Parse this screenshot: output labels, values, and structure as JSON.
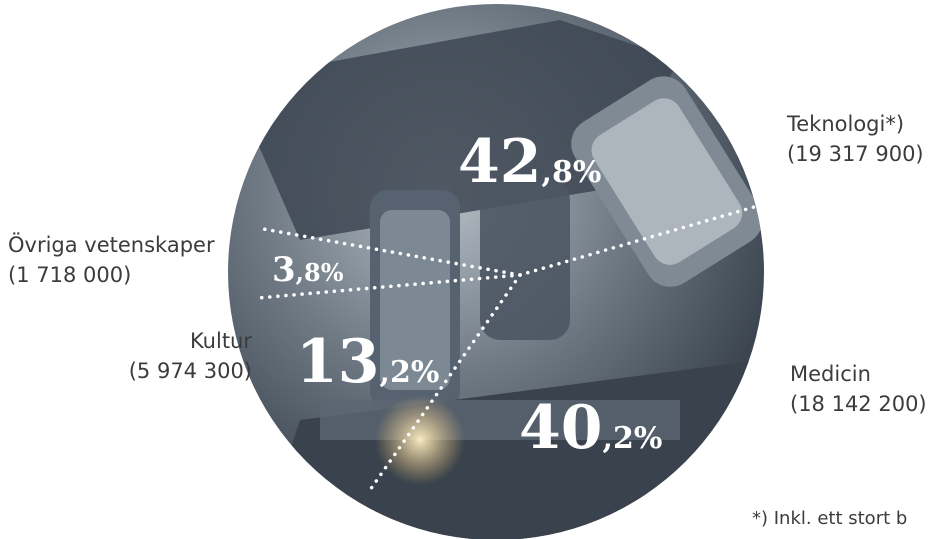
{
  "chart_data": {
    "type": "pie",
    "slices": [
      {
        "name": "Teknologi*)",
        "value_label": "(19 317 900)",
        "value": 19317900,
        "pct_int": "42",
        "pct_dec": ",8%",
        "percent": 42.8
      },
      {
        "name": "Medicin",
        "value_label": "(18 142 200)",
        "value": 18142200,
        "pct_int": "40",
        "pct_dec": ",2%",
        "percent": 40.2
      },
      {
        "name": "Kultur",
        "value_label": "(5 974 300)",
        "value": 5974300,
        "pct_int": "13",
        "pct_dec": ",2%",
        "percent": 13.2
      },
      {
        "name": "Övriga vetenskaper",
        "value_label": "(1 718 000)",
        "value": 1718000,
        "pct_int": "3",
        "pct_dec": ",8%",
        "percent": 3.8
      }
    ],
    "footnote": "*) Inkl. ett stort b"
  },
  "colors": {
    "background_photo_dark": "#2c3540",
    "background_photo_light": "#9aa4ad",
    "divider": "#ffffff"
  }
}
